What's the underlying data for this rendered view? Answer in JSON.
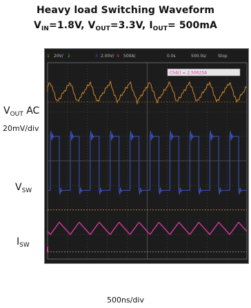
{
  "title": {
    "line1": "Heavy load Switching Waveform",
    "line2": {
      "v_in": "V",
      "v_in_sub": "IN",
      "v_in_val": "=1.8V, ",
      "v_out": "V",
      "v_out_sub": "OUT",
      "v_out_val": "=3.3V, ",
      "i_out": "I",
      "i_out_sub": "OUT",
      "i_out_val": "= 500mA"
    }
  },
  "labels": {
    "vout_ac": {
      "main": "V",
      "sub": "OUT",
      "suffix": " AC"
    },
    "vout_scale": "20mV/div",
    "vsw": {
      "main": "V",
      "sub": "SW"
    },
    "isw": {
      "main": "I",
      "sub": "SW"
    },
    "x_scale": "500ns/div"
  },
  "scope": {
    "header": [
      "1",
      "20V/",
      "2",
      "3",
      "2.00V/",
      "4",
      "500A/",
      "0.0s",
      "500.0s/",
      "Stop"
    ],
    "measurement": "Ch4() = 2.50625A"
  },
  "chart_data": {
    "type": "line",
    "title": "Heavy load Switching Waveform",
    "x_scale": "500ns/div",
    "x_divisions": 10,
    "switching_period_divisions": 1.0,
    "series": [
      {
        "name": "VOUT AC",
        "scale": "20mV/div",
        "color": "#d08a2a",
        "shape": "sawtooth ripple",
        "peak_to_peak_divisions": 0.8
      },
      {
        "name": "VSW",
        "color": "#3c55c8",
        "shape": "square wave with ringing",
        "high_level": "3.3V",
        "low_level": "0V"
      },
      {
        "name": "ISW",
        "color": "#d63aa0",
        "shape": "triangle ripple",
        "peak_to_peak_divisions": 0.5
      }
    ]
  }
}
